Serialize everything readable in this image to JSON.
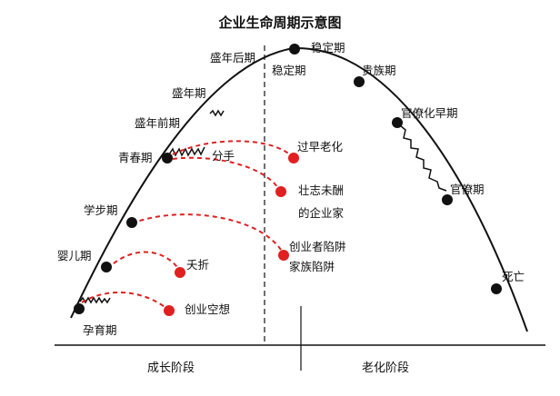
{
  "title": "企业生命周期示意图",
  "stages_left": {
    "yunyu": "孕育期",
    "yinger": "婴儿期",
    "xuebu": "学步期",
    "qingchun": "青春期",
    "shengnian_qian": "盛年前期",
    "shengnian": "盛年期",
    "shengnian_hou": "盛年后期"
  },
  "stages_right": {
    "wending_top": "稳定期",
    "wending": "稳定期",
    "guizu": "贵族期",
    "guanliaohua_zao": "官僚化早期",
    "guanliao": "官僚期",
    "siwang": "死亡"
  },
  "traps": {
    "chuangye_kongxiang": "创业空想",
    "yaozhe": "夭折",
    "chuangyezhe_xianjing": "创业者陷阱",
    "jiazu_xianjing": "家族陷阱",
    "zhuangzhi_line1": "壮志未酬",
    "zhuangzhi_line2": "的企业家",
    "fenshou": "分手",
    "guozao_laohua": "过早老化"
  },
  "phases": {
    "growth": "成长阶段",
    "aging": "老化阶段"
  },
  "colors": {
    "curve": "#111111",
    "trap": "#e02020",
    "dot": "#111111"
  }
}
